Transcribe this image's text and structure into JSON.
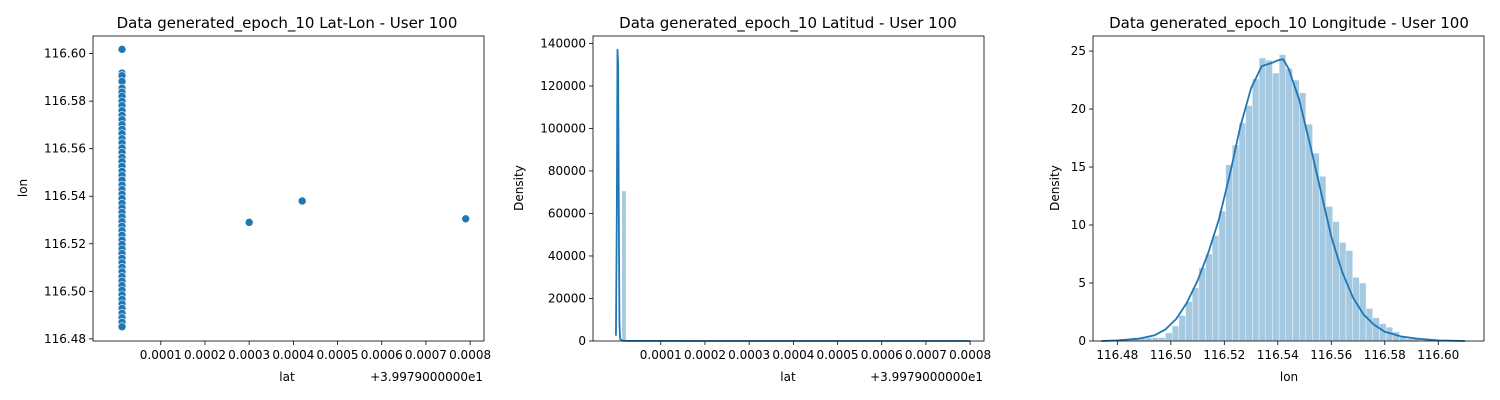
{
  "chart_data": [
    {
      "type": "scatter",
      "title": "Data generated_epoch_10 Lat-Lon - User 100",
      "xlabel": "lat",
      "ylabel": "lon",
      "x_offset_label": "+3.9979000000e1",
      "xlim": [
        -5.34e-05,
        0.0008314
      ],
      "ylim": [
        116.4791,
        116.6074
      ],
      "xticks": [
        0.0001,
        0.0002,
        0.0003,
        0.0004,
        0.0005,
        0.0006,
        0.0007,
        0.0008
      ],
      "xtick_labels": [
        "0.0001",
        "0.0002",
        "0.0003",
        "0.0004",
        "0.0005",
        "0.0006",
        "0.0007",
        "0.0008"
      ],
      "yticks": [
        116.48,
        116.5,
        116.52,
        116.54,
        116.56,
        116.58,
        116.6
      ],
      "ytick_labels": [
        "116.48",
        "116.50",
        "116.52",
        "116.54",
        "116.56",
        "116.58",
        "116.60"
      ],
      "color": "#1f77b4",
      "points": [
        [
          1.23e-05,
          116.6018
        ],
        [
          1.23e-05,
          116.5918
        ],
        [
          1.23e-05,
          116.5907
        ],
        [
          1.23e-05,
          116.5883
        ],
        [
          1.23e-05,
          116.5855
        ],
        [
          1.23e-05,
          116.5838
        ],
        [
          1.23e-05,
          116.582
        ],
        [
          1.23e-05,
          116.5799
        ],
        [
          1.23e-05,
          116.5781
        ],
        [
          1.23e-05,
          116.576
        ],
        [
          1.23e-05,
          116.574
        ],
        [
          1.23e-05,
          116.5722
        ],
        [
          1.23e-05,
          116.5701
        ],
        [
          1.23e-05,
          116.5682
        ],
        [
          1.23e-05,
          116.5663
        ],
        [
          1.23e-05,
          116.5642
        ],
        [
          1.23e-05,
          116.5624
        ],
        [
          1.23e-05,
          116.5603
        ],
        [
          1.23e-05,
          116.5584
        ],
        [
          1.23e-05,
          116.5563
        ],
        [
          1.23e-05,
          116.5545
        ],
        [
          1.23e-05,
          116.5526
        ],
        [
          1.23e-05,
          116.5505
        ],
        [
          1.23e-05,
          116.5487
        ],
        [
          1.23e-05,
          116.5468
        ],
        [
          1.23e-05,
          116.5447
        ],
        [
          1.23e-05,
          116.5428
        ],
        [
          1.23e-05,
          116.5409
        ],
        [
          1.23e-05,
          116.539
        ],
        [
          1.23e-05,
          116.537
        ],
        [
          1.23e-05,
          116.5351
        ],
        [
          1.23e-05,
          116.5332
        ],
        [
          1.23e-05,
          116.5313
        ],
        [
          1.23e-05,
          116.5293
        ],
        [
          1.23e-05,
          116.5274
        ],
        [
          1.23e-05,
          116.5255
        ],
        [
          1.23e-05,
          116.5236
        ],
        [
          1.23e-05,
          116.5216
        ],
        [
          1.23e-05,
          116.5197
        ],
        [
          1.23e-05,
          116.5178
        ],
        [
          1.23e-05,
          116.5159
        ],
        [
          1.23e-05,
          116.5139
        ],
        [
          1.23e-05,
          116.512
        ],
        [
          1.23e-05,
          116.5101
        ],
        [
          1.23e-05,
          116.5082
        ],
        [
          1.23e-05,
          116.5062
        ],
        [
          1.23e-05,
          116.5043
        ],
        [
          1.23e-05,
          116.5024
        ],
        [
          1.23e-05,
          116.5005
        ],
        [
          1.23e-05,
          116.4985
        ],
        [
          1.23e-05,
          116.4966
        ],
        [
          1.23e-05,
          116.4947
        ],
        [
          1.23e-05,
          116.4928
        ],
        [
          1.23e-05,
          116.4908
        ],
        [
          1.23e-05,
          116.4889
        ],
        [
          1.23e-05,
          116.487
        ],
        [
          1.23e-05,
          116.4851
        ],
        [
          0.0003,
          116.529
        ],
        [
          0.00042,
          116.538
        ],
        [
          0.00079,
          116.5305
        ]
      ]
    },
    {
      "type": "area",
      "title": "Data generated_epoch_10 Latitud - User 100",
      "xlabel": "lat",
      "ylabel": "Density",
      "x_offset_label": "+3.9979000000e1",
      "xlim": [
        -5.34e-05,
        0.0008314
      ],
      "ylim": [
        0,
        143500
      ],
      "xticks": [
        0.0001,
        0.0002,
        0.0003,
        0.0004,
        0.0005,
        0.0006,
        0.0007,
        0.0008
      ],
      "xtick_labels": [
        "0.0001",
        "0.0002",
        "0.0003",
        "0.0004",
        "0.0005",
        "0.0006",
        "0.0007",
        "0.0008"
      ],
      "yticks": [
        0,
        20000,
        40000,
        60000,
        80000,
        100000,
        120000,
        140000
      ],
      "ytick_labels": [
        "0",
        "20000",
        "40000",
        "60000",
        "80000",
        "100000",
        "120000",
        "140000"
      ],
      "color": "#1f77b4",
      "hist_bars": [
        {
          "x0": 1.23e-05,
          "x1": 2.09e-05,
          "density": 70500
        }
      ],
      "kde": [
        [
          -1.5e-06,
          2500
        ],
        [
          5e-07,
          60000
        ],
        [
          2e-06,
          137000
        ],
        [
          3.5e-06,
          130000
        ],
        [
          5e-06,
          60000
        ],
        [
          6.5e-06,
          8000
        ],
        [
          8e-06,
          1000
        ],
        [
          1.2e-05,
          200
        ],
        [
          2e-05,
          50
        ],
        [
          0.0002,
          0
        ],
        [
          0.0004,
          0
        ],
        [
          0.0006,
          0
        ],
        [
          0.0008,
          0
        ]
      ]
    },
    {
      "type": "area",
      "title": "Data generated_epoch_10 Longitude - User 100",
      "xlabel": "lon",
      "ylabel": "Density",
      "xlim": [
        116.4709,
        116.6171
      ],
      "ylim": [
        0,
        26.3
      ],
      "xticks": [
        116.48,
        116.5,
        116.52,
        116.54,
        116.56,
        116.58,
        116.6
      ],
      "xtick_labels": [
        "116.48",
        "116.50",
        "116.52",
        "116.54",
        "116.56",
        "116.58",
        "116.60"
      ],
      "yticks": [
        0,
        5,
        10,
        15,
        20,
        25
      ],
      "ytick_labels": [
        "0",
        "5",
        "10",
        "15",
        "20",
        "25"
      ],
      "color": "#1f77b4",
      "bin_edges_start": 116.4855,
      "bin_width": 0.0025,
      "hist_values": [
        0.3,
        0.3,
        0.3,
        0.3,
        0.3,
        0.7,
        1.3,
        2.2,
        3.4,
        4.6,
        6.3,
        7.5,
        9.1,
        11.2,
        15.2,
        16.9,
        18.8,
        20.3,
        22.6,
        24.4,
        24.2,
        23.1,
        24.7,
        23.5,
        22.5,
        21.4,
        18.7,
        16.2,
        14.2,
        11.6,
        10.3,
        8.5,
        7.8,
        5.5,
        5.0,
        2.8,
        2.0,
        1.5,
        1.2,
        0.8,
        0.4,
        0.2,
        0.3
      ],
      "kde": [
        [
          116.474,
          0.0
        ],
        [
          116.48,
          0.05
        ],
        [
          116.488,
          0.2
        ],
        [
          116.494,
          0.5
        ],
        [
          116.498,
          1.0
        ],
        [
          116.502,
          1.9
        ],
        [
          116.506,
          3.3
        ],
        [
          116.51,
          5.2
        ],
        [
          116.514,
          7.6
        ],
        [
          116.518,
          10.5
        ],
        [
          116.522,
          14.3
        ],
        [
          116.526,
          18.5
        ],
        [
          116.53,
          21.8
        ],
        [
          116.534,
          23.7
        ],
        [
          116.538,
          24.0
        ],
        [
          116.54,
          24.2
        ],
        [
          116.542,
          24.3
        ],
        [
          116.544,
          23.5
        ],
        [
          116.548,
          20.8
        ],
        [
          116.552,
          17.0
        ],
        [
          116.556,
          13.0
        ],
        [
          116.56,
          9.0
        ],
        [
          116.564,
          6.0
        ],
        [
          116.568,
          3.8
        ],
        [
          116.572,
          2.3
        ],
        [
          116.576,
          1.4
        ],
        [
          116.58,
          0.8
        ],
        [
          116.586,
          0.4
        ],
        [
          116.592,
          0.2
        ],
        [
          116.6,
          0.05
        ],
        [
          116.61,
          0.0
        ]
      ]
    }
  ]
}
